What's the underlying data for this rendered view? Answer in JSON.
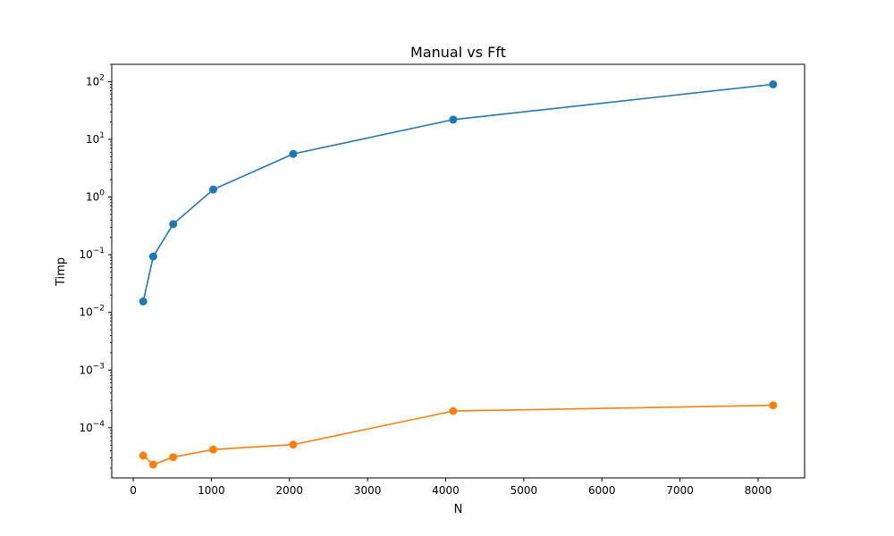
{
  "chart_data": {
    "type": "line",
    "title": "Manual vs Fft",
    "xlabel": "N",
    "ylabel": "Timp",
    "x": [
      128,
      256,
      512,
      1024,
      2048,
      4096,
      8192
    ],
    "series": [
      {
        "color": "#1f77b4",
        "values": [
          0.0155,
          0.093,
          0.34,
          1.35,
          5.6,
          22,
          90
        ]
      },
      {
        "color": "#ff7f0e",
        "values": [
          3.3e-05,
          2.3e-05,
          3.1e-05,
          4.2e-05,
          5.1e-05,
          0.000195,
          0.000245
        ]
      }
    ],
    "xlim": [
      -275,
      8595
    ],
    "ylim": [
      1.35e-05,
      200
    ],
    "yscale": "log",
    "xticks": [
      0,
      1000,
      2000,
      3000,
      4000,
      5000,
      6000,
      7000,
      8000
    ],
    "yticks": [
      {
        "value": 0.0001,
        "base": "10",
        "exp": "−4"
      },
      {
        "value": 0.001,
        "base": "10",
        "exp": "−3"
      },
      {
        "value": 0.01,
        "base": "10",
        "exp": "−2"
      },
      {
        "value": 0.1,
        "base": "10",
        "exp": "−1"
      },
      {
        "value": 1,
        "base": "10",
        "exp": "0"
      },
      {
        "value": 10,
        "base": "10",
        "exp": "1"
      },
      {
        "value": 100,
        "base": "10",
        "exp": "2"
      }
    ],
    "grid": false,
    "legend": "none"
  }
}
